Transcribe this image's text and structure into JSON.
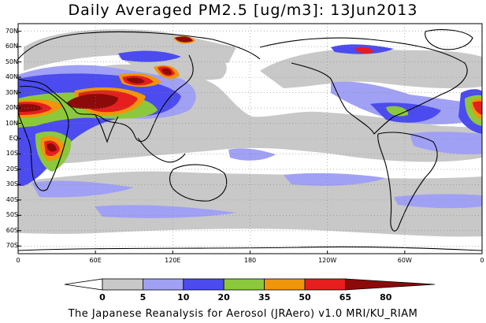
{
  "title": "Daily Averaged PM2.5 [ug/m3]: 13Jun2013",
  "footer": "The Japanese Reanalysis for Aerosol (JRAero) v1.0 MRI/KU_RIAM",
  "lat_labels": [
    "70N",
    "60N",
    "50N",
    "40N",
    "30N",
    "20N",
    "10N",
    "EQ",
    "10S",
    "20S",
    "30S",
    "40S",
    "50S",
    "60S",
    "70S"
  ],
  "lon_labels": [
    "0",
    "60E",
    "120E",
    "180",
    "120W",
    "60W",
    "0"
  ],
  "colorbar": {
    "bins": [
      {
        "color": "#ffffff"
      },
      {
        "color": "#c8c8c8"
      },
      {
        "color": "#a0a0f5"
      },
      {
        "color": "#4b4bf0"
      },
      {
        "color": "#8cc83c"
      },
      {
        "color": "#f0960a"
      },
      {
        "color": "#e61e1e"
      },
      {
        "color": "#8c0a0a"
      }
    ],
    "labels": [
      "0",
      "5",
      "10",
      "20",
      "35",
      "50",
      "65",
      "80"
    ]
  }
}
